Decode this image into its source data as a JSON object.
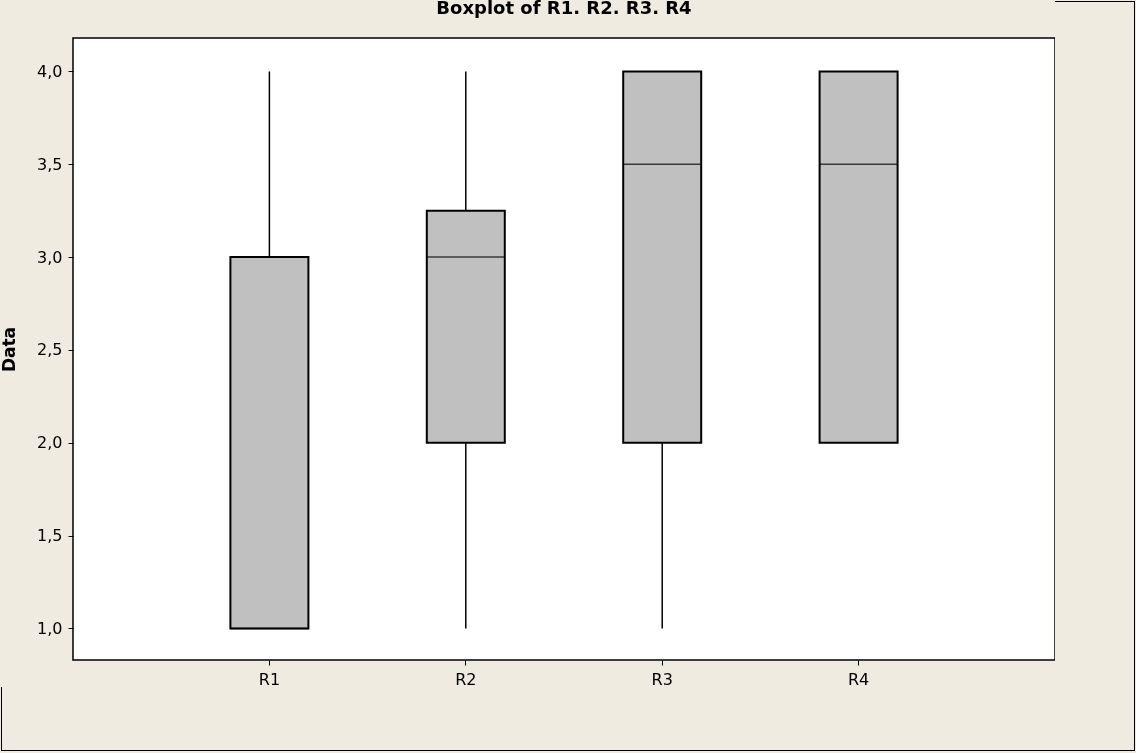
{
  "chart_data": {
    "type": "box",
    "title": "Boxplot of R1. R2. R3. R4",
    "ylabel": "Data",
    "categories": [
      "R1",
      "R2",
      "R3",
      "R4"
    ],
    "color": "#c0c0c0",
    "boxes": [
      {
        "low": 1,
        "q1": 1,
        "median": 1,
        "q3": 3,
        "high": 4
      },
      {
        "low": 1,
        "q1": 2,
        "median": 3,
        "q3": 3.25,
        "high": 4
      },
      {
        "low": 1,
        "q1": 2,
        "median": 3.5,
        "q3": 4,
        "high": 4
      },
      {
        "low": 2,
        "q1": 2,
        "median": 3.5,
        "q3": 4,
        "high": 4
      }
    ],
    "ylim": [
      0.83,
      4.18
    ],
    "yticks": [
      {
        "value": 1,
        "label": "1,0"
      },
      {
        "value": 1.5,
        "label": "1,5"
      },
      {
        "value": 2,
        "label": "2,0"
      },
      {
        "value": 2.5,
        "label": "2,5"
      },
      {
        "value": 3,
        "label": "3,0"
      },
      {
        "value": 3.5,
        "label": "3,5"
      },
      {
        "value": 4,
        "label": "4,0"
      }
    ],
    "grid": false
  }
}
